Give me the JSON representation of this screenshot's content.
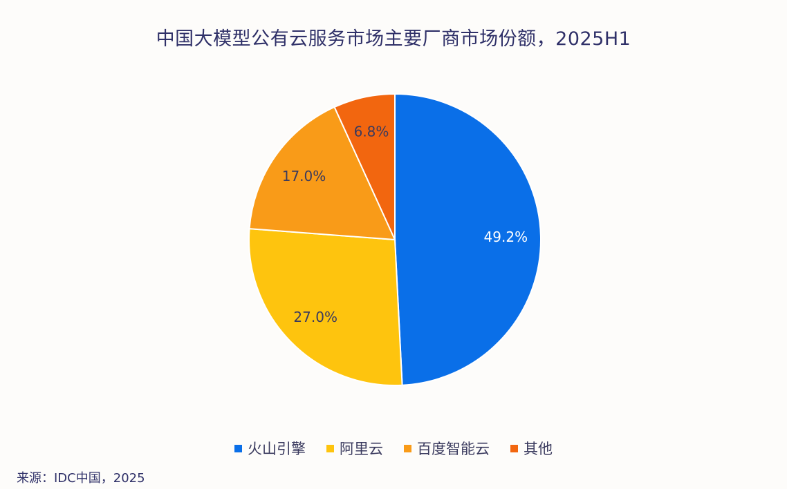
{
  "chart_data": {
    "type": "pie",
    "title": "中国大模型公有云服务市场主要厂商市场份额，2025H1",
    "categories": [
      "火山引擎",
      "阿里云",
      "百度智能云",
      "其他"
    ],
    "values": [
      49.2,
      27.0,
      17.0,
      6.8
    ],
    "labels": [
      "49.2%",
      "27.0%",
      "17.0%",
      "6.8%"
    ],
    "colors": [
      "#0a6fe8",
      "#fec40e",
      "#f99b18",
      "#f2660f"
    ],
    "label_colors": [
      "#ffffff",
      "#3a3a5e",
      "#3a3a5e",
      "#3a3a5e"
    ],
    "legend_position": "bottom",
    "start": "top, clockwise"
  },
  "source": "来源：IDC中国，2025"
}
